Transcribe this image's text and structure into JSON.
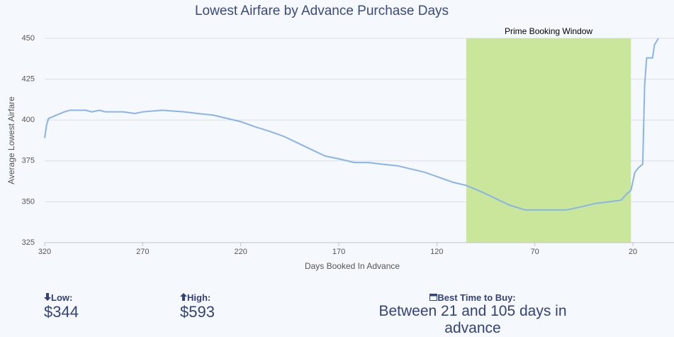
{
  "chart_data": {
    "type": "line",
    "title": "Lowest Airfare by Advance Purchase Days",
    "x_label": "Days Booked In Advance",
    "y_label": "Average Lowest Airfare",
    "x": [
      320,
      319,
      318,
      314,
      310,
      307,
      299,
      296,
      292,
      289,
      280,
      274,
      270,
      260,
      249,
      242,
      234,
      227,
      220,
      213,
      205,
      198,
      191,
      184,
      177,
      169,
      162,
      155,
      148,
      140,
      133,
      126,
      119,
      112,
      105,
      97,
      90,
      83,
      75,
      68,
      61,
      54,
      46,
      39,
      32,
      26,
      23,
      21,
      19,
      17,
      15,
      14,
      13,
      10,
      9,
      7
    ],
    "series": [
      {
        "name": "Average Lowest Airfare",
        "color": "#8ab4e8",
        "values": [
          389,
          397,
          401,
          403,
          405,
          406,
          406,
          405,
          406,
          405,
          405,
          404,
          405,
          406,
          405,
          404,
          403,
          401,
          399,
          396,
          393,
          390,
          386,
          382,
          378,
          376,
          374,
          374,
          373,
          372,
          370,
          368,
          365,
          362,
          360,
          356,
          352,
          348,
          345,
          345,
          345,
          345,
          347,
          349,
          350,
          351,
          355,
          357,
          368,
          371,
          373,
          422,
          438,
          438,
          446,
          450
        ]
      }
    ],
    "xlim": [
      320,
      7
    ],
    "xticks": [
      320,
      270,
      220,
      170,
      120,
      70,
      20
    ],
    "ylim": [
      325,
      450
    ],
    "yticks": [
      325,
      350,
      375,
      400,
      425,
      450
    ],
    "grid": true,
    "bands": [
      {
        "from": 105,
        "to": 21,
        "label": "Prime Booking Window",
        "color": "#c9e69b"
      }
    ]
  },
  "stats": {
    "low": {
      "label": "Low:",
      "value": "$344"
    },
    "high": {
      "label": "High:",
      "value": "$593"
    },
    "best": {
      "label": "Best Time to Buy:",
      "value": "Between 21 and 105 days in advance"
    }
  }
}
